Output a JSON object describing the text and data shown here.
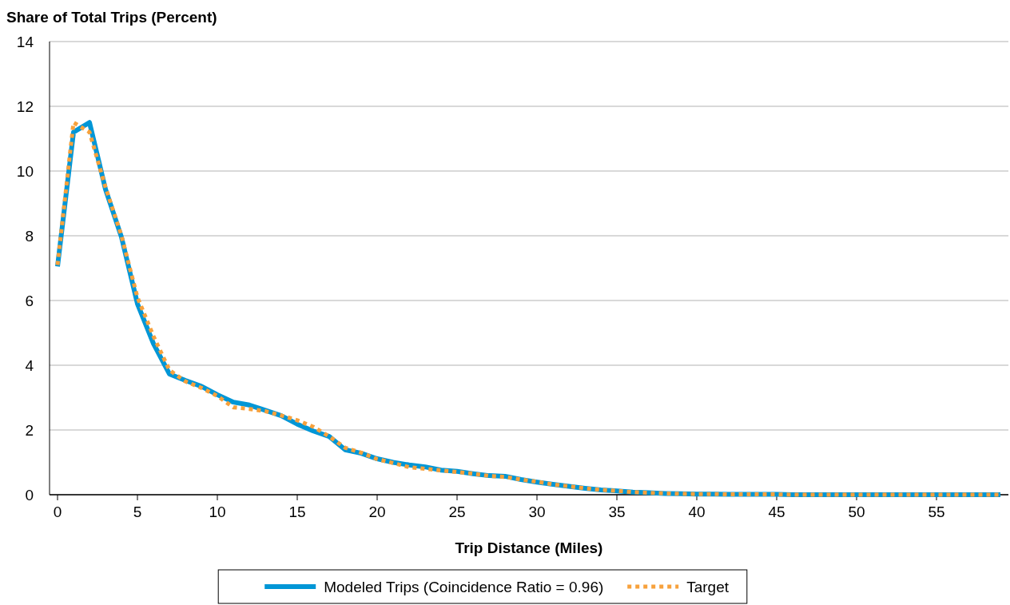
{
  "chart_data": {
    "type": "line",
    "ylabel": "Share of Total Trips (Percent)",
    "xlabel": "Trip Distance (Miles)",
    "xlim": [
      -0.5,
      59.5
    ],
    "xticks": [
      0,
      5,
      10,
      15,
      20,
      25,
      30,
      35,
      40,
      45,
      50,
      55
    ],
    "ylim": [
      0,
      14
    ],
    "yticks": [
      0,
      2,
      4,
      6,
      8,
      10,
      12,
      14
    ],
    "grid": "y",
    "legend": "bottom",
    "marker": "none",
    "x": [
      0,
      1,
      2,
      3,
      4,
      5,
      6,
      7,
      8,
      9,
      10,
      11,
      12,
      13,
      14,
      15,
      16,
      17,
      18,
      19,
      20,
      21,
      22,
      23,
      24,
      25,
      26,
      27,
      28,
      29,
      30,
      31,
      32,
      33,
      34,
      35,
      36,
      37,
      38,
      39,
      40,
      41,
      42,
      43,
      44,
      45,
      46,
      47,
      48,
      49,
      50,
      51,
      52,
      53,
      54,
      55,
      56,
      57,
      58,
      59
    ],
    "series": [
      {
        "name": "Modeled Trips (Coincidence Ratio = 0.96)",
        "color": "#0096d6",
        "line_style": "solid",
        "values": [
          7.05,
          11.2,
          11.5,
          9.44,
          7.96,
          5.9,
          4.67,
          3.73,
          3.53,
          3.35,
          3.09,
          2.86,
          2.77,
          2.61,
          2.44,
          2.18,
          1.97,
          1.8,
          1.39,
          1.28,
          1.11,
          1.0,
          0.92,
          0.86,
          0.76,
          0.72,
          0.65,
          0.59,
          0.57,
          0.47,
          0.39,
          0.32,
          0.26,
          0.2,
          0.15,
          0.12,
          0.08,
          0.06,
          0.04,
          0.03,
          0.02,
          0.02,
          0.01,
          0.01,
          0.01,
          0.01,
          0,
          0,
          0,
          0,
          0,
          0,
          0,
          0,
          0,
          0,
          0,
          0,
          0,
          0
        ]
      },
      {
        "name": "Target",
        "color": "#f7a13c",
        "line_style": "dotted",
        "values": [
          7.1,
          11.5,
          11.2,
          9.5,
          8.0,
          6.1,
          4.9,
          3.85,
          3.5,
          3.3,
          3.05,
          2.7,
          2.65,
          2.58,
          2.45,
          2.3,
          2.1,
          1.8,
          1.45,
          1.3,
          1.1,
          0.98,
          0.85,
          0.8,
          0.75,
          0.7,
          0.65,
          0.58,
          0.55,
          0.47,
          0.4,
          0.32,
          0.26,
          0.2,
          0.15,
          0.12,
          0.08,
          0.06,
          0.04,
          0.03,
          0.02,
          0.02,
          0.01,
          0.01,
          0.01,
          0.01,
          0,
          0,
          0,
          0,
          0,
          0,
          0,
          0,
          0,
          0,
          0,
          0,
          0,
          0
        ]
      }
    ]
  }
}
